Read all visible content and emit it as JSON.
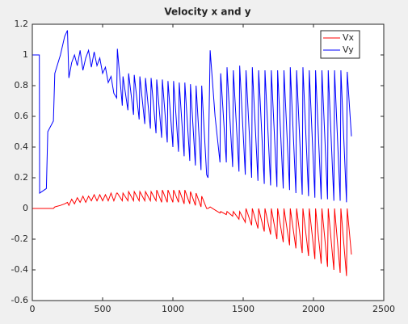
{
  "chart_data": {
    "type": "line",
    "title": "Velocity x and y",
    "x": [
      0,
      50,
      52,
      100,
      110,
      150,
      160,
      200,
      230,
      250,
      260,
      280,
      300,
      320,
      340,
      360,
      380,
      400,
      420,
      440,
      460,
      480,
      500,
      520,
      540,
      560,
      580,
      600,
      605,
      640,
      645,
      680,
      685,
      720,
      725,
      760,
      765,
      800,
      805,
      840,
      845,
      880,
      885,
      920,
      925,
      960,
      965,
      1000,
      1005,
      1040,
      1045,
      1080,
      1085,
      1120,
      1125,
      1160,
      1165,
      1200,
      1205,
      1240,
      1250,
      1265,
      1300,
      1335,
      1340,
      1380,
      1385,
      1425,
      1430,
      1470,
      1475,
      1515,
      1520,
      1560,
      1565,
      1605,
      1610,
      1650,
      1655,
      1695,
      1700,
      1740,
      1745,
      1785,
      1790,
      1830,
      1835,
      1875,
      1880,
      1920,
      1925,
      1965,
      1970,
      2010,
      2015,
      2055,
      2060,
      2100,
      2105,
      2145,
      2150,
      2190,
      2195,
      2235,
      2240,
      2270
    ],
    "series": [
      {
        "name": "Vx",
        "color": "#ff0000",
        "values": [
          0,
          0,
          0,
          0,
          0,
          0,
          0.01,
          0.02,
          0.03,
          0.04,
          0.02,
          0.06,
          0.03,
          0.07,
          0.04,
          0.08,
          0.04,
          0.08,
          0.05,
          0.09,
          0.05,
          0.09,
          0.05,
          0.09,
          0.05,
          0.1,
          0.05,
          0.1,
          0.1,
          0.05,
          0.1,
          0.05,
          0.11,
          0.05,
          0.11,
          0.05,
          0.11,
          0.05,
          0.11,
          0.05,
          0.11,
          0.05,
          0.12,
          0.04,
          0.12,
          0.04,
          0.12,
          0.04,
          0.12,
          0.04,
          0.12,
          0.03,
          0.12,
          0.03,
          0.11,
          0.02,
          0.1,
          0.01,
          0.08,
          0.0,
          0.0,
          0.01,
          -0.01,
          -0.03,
          -0.02,
          -0.04,
          -0.02,
          -0.05,
          -0.02,
          -0.07,
          -0.02,
          -0.09,
          0,
          -0.11,
          0,
          -0.13,
          0,
          -0.15,
          0,
          -0.17,
          0,
          -0.2,
          0,
          -0.22,
          0,
          -0.24,
          0,
          -0.26,
          0,
          -0.29,
          0,
          -0.31,
          0,
          -0.33,
          0,
          -0.36,
          0,
          -0.38,
          0,
          -0.4,
          0,
          -0.42,
          0,
          -0.44,
          0,
          -0.3
        ]
      },
      {
        "name": "Vy",
        "color": "#0000ff",
        "values": [
          1,
          1,
          0.1,
          0.13,
          0.5,
          0.57,
          0.88,
          1.0,
          1.12,
          1.16,
          0.85,
          0.95,
          1.0,
          0.93,
          1.03,
          0.9,
          0.98,
          1.03,
          0.92,
          1.02,
          0.93,
          0.98,
          0.88,
          0.92,
          0.82,
          0.86,
          0.75,
          0.72,
          1.04,
          0.67,
          0.86,
          0.64,
          0.88,
          0.61,
          0.87,
          0.58,
          0.86,
          0.55,
          0.85,
          0.52,
          0.85,
          0.49,
          0.84,
          0.46,
          0.84,
          0.43,
          0.83,
          0.4,
          0.83,
          0.37,
          0.82,
          0.34,
          0.82,
          0.31,
          0.81,
          0.28,
          0.8,
          0.25,
          0.8,
          0.22,
          0.2,
          1.03,
          0.6,
          0.3,
          0.88,
          0.3,
          0.92,
          0.27,
          0.9,
          0.24,
          0.93,
          0.22,
          0.9,
          0.2,
          0.92,
          0.18,
          0.9,
          0.16,
          0.9,
          0.15,
          0.9,
          0.14,
          0.9,
          0.13,
          0.9,
          0.12,
          0.92,
          0.1,
          0.9,
          0.09,
          0.92,
          0.08,
          0.9,
          0.07,
          0.9,
          0.06,
          0.9,
          0.06,
          0.9,
          0.05,
          0.9,
          0.05,
          0.9,
          0.04,
          0.89,
          0.47
        ]
      }
    ],
    "xlim": [
      0,
      2500
    ],
    "xticks": [
      0,
      500,
      1000,
      1500,
      2000,
      2500
    ],
    "ylim": [
      -0.6,
      1.2
    ],
    "yticks": [
      -0.6,
      -0.4,
      -0.2,
      0,
      0.2,
      0.4,
      0.6,
      0.8,
      1,
      1.2
    ],
    "grid": false,
    "legend": "top-right"
  }
}
